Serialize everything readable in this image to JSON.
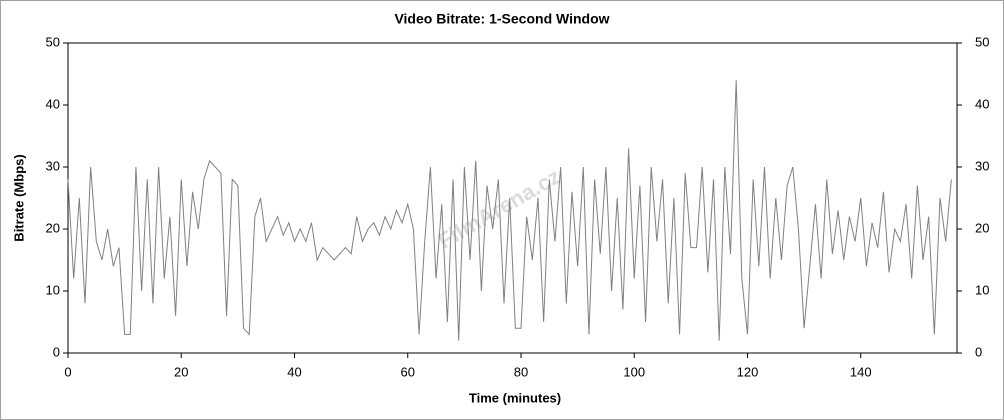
{
  "chart_data": {
    "type": "line",
    "title": "Video Bitrate: 1-Second Window",
    "x_label": "Time (minutes)",
    "y_label": "Bitrate (Mbps)",
    "watermark": "FilmArena.cz",
    "x": [
      0,
      1,
      2,
      3,
      4,
      5,
      6,
      7,
      8,
      9,
      10,
      11,
      12,
      13,
      14,
      15,
      16,
      17,
      18,
      19,
      20,
      21,
      22,
      23,
      24,
      25,
      26,
      27,
      28,
      29,
      30,
      31,
      32,
      33,
      34,
      35,
      36,
      37,
      38,
      39,
      40,
      41,
      42,
      43,
      44,
      45,
      46,
      47,
      48,
      49,
      50,
      51,
      52,
      53,
      54,
      55,
      56,
      57,
      58,
      59,
      60,
      61,
      62,
      63,
      64,
      65,
      66,
      67,
      68,
      69,
      70,
      71,
      72,
      73,
      74,
      75,
      76,
      77,
      78,
      79,
      80,
      81,
      82,
      83,
      84,
      85,
      86,
      87,
      88,
      89,
      90,
      91,
      92,
      93,
      94,
      95,
      96,
      97,
      98,
      99,
      100,
      101,
      102,
      103,
      104,
      105,
      106,
      107,
      108,
      109,
      110,
      111,
      112,
      113,
      114,
      115,
      116,
      117,
      118,
      119,
      120,
      121,
      122,
      123,
      124,
      125,
      126,
      127,
      128,
      129,
      130,
      131,
      132,
      133,
      134,
      135,
      136,
      137,
      138,
      139,
      140,
      141,
      142,
      143,
      144,
      145,
      146,
      147,
      148,
      149,
      150,
      151,
      152,
      153,
      154,
      155,
      156
    ],
    "series": [
      {
        "name": "Video Bitrate",
        "color": "#808080",
        "values": [
          28,
          12,
          25,
          8,
          30,
          18,
          15,
          20,
          14,
          17,
          3,
          3,
          30,
          10,
          28,
          8,
          30,
          12,
          22,
          6,
          28,
          14,
          26,
          20,
          28,
          31,
          30,
          29,
          6,
          28,
          27,
          4,
          3,
          22,
          25,
          18,
          20,
          22,
          19,
          21,
          18,
          20,
          18,
          21,
          15,
          17,
          16,
          15,
          16,
          17,
          16,
          22,
          18,
          20,
          21,
          19,
          22,
          20,
          23,
          21,
          24,
          20,
          3,
          18,
          30,
          12,
          24,
          5,
          28,
          2,
          30,
          15,
          31,
          10,
          27,
          20,
          28,
          8,
          25,
          4,
          4,
          22,
          15,
          25,
          5,
          28,
          18,
          30,
          8,
          26,
          14,
          30,
          3,
          28,
          16,
          30,
          10,
          25,
          7,
          33,
          12,
          27,
          5,
          30,
          18,
          28,
          8,
          25,
          3,
          29,
          17,
          17,
          30,
          13,
          28,
          2,
          30,
          16,
          44,
          12,
          3,
          28,
          14,
          30,
          12,
          25,
          15,
          27,
          30,
          20,
          4,
          14,
          24,
          12,
          28,
          16,
          23,
          15,
          22,
          18,
          25,
          14,
          21,
          17,
          26,
          13,
          20,
          18,
          24,
          12,
          27,
          15,
          22,
          3,
          25,
          18,
          28
        ]
      }
    ],
    "xlim": [
      0,
      157
    ],
    "xticks": [
      0,
      20,
      40,
      60,
      80,
      100,
      120,
      140
    ],
    "ylim": [
      0,
      50
    ],
    "yticks": [
      0,
      10,
      20,
      30,
      40,
      50
    ],
    "y2lim": [
      0,
      50
    ],
    "y2ticks": [
      0,
      10,
      20,
      30,
      40,
      50
    ],
    "grid": false
  }
}
